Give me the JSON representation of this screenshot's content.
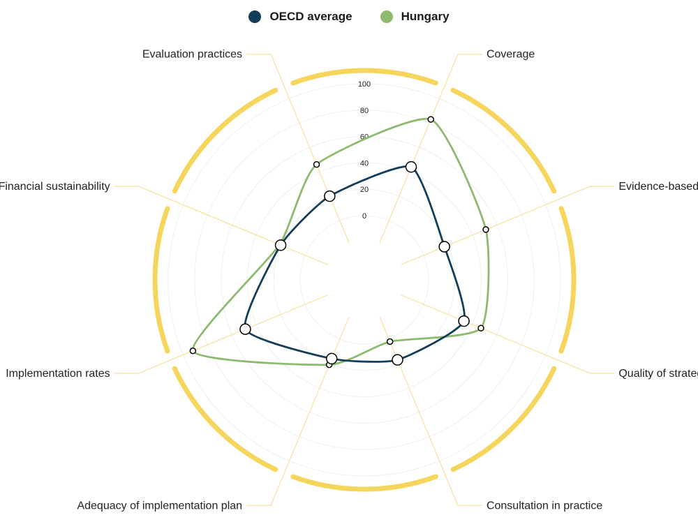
{
  "chart_data": {
    "type": "radar",
    "categories": [
      "Coverage",
      "Evidence-based",
      "Quality of strategy",
      "Consultation in practice",
      "Adequacy of implementation plan",
      "Implementation rates",
      "Financial sustainability",
      "Evaluation practices"
    ],
    "radial_ticks": [
      "0",
      "20",
      "40",
      "60",
      "80",
      "100"
    ],
    "rlim": [
      0,
      100
    ],
    "legend_position": "top-center",
    "series": [
      {
        "name": "OECD average",
        "color": "#143d59",
        "values": [
          44,
          17,
          33,
          17,
          16,
          49,
          20,
          20
        ]
      },
      {
        "name": "Hungary",
        "color": "#8cbb6e",
        "values": [
          83,
          51,
          47,
          2,
          21,
          92,
          21,
          46
        ]
      }
    ]
  },
  "colors": {
    "ring": "#f5d55c",
    "spoke": "#f8e3a0",
    "grid": "#eeeeee"
  }
}
